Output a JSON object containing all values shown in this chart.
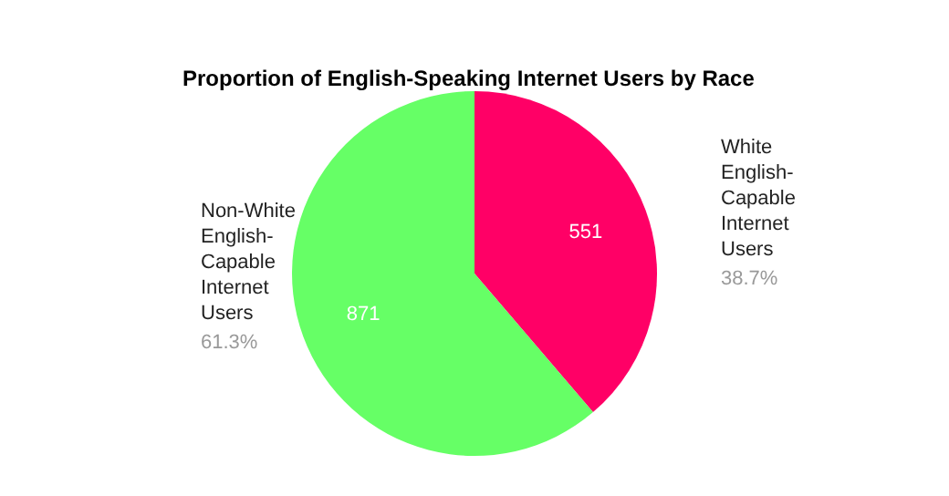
{
  "chart_data": {
    "type": "pie",
    "title": "Proportion of English-Speaking Internet Users by Race",
    "categories": [
      "White English-Capable Internet Users",
      "Non-White English-Capable Internet Users"
    ],
    "values": [
      551,
      871
    ],
    "colors": [
      "#ff0066",
      "#66ff66"
    ],
    "data_labels": true,
    "annotations": [
      "38.7%",
      "61.3%"
    ],
    "legend": false
  }
}
